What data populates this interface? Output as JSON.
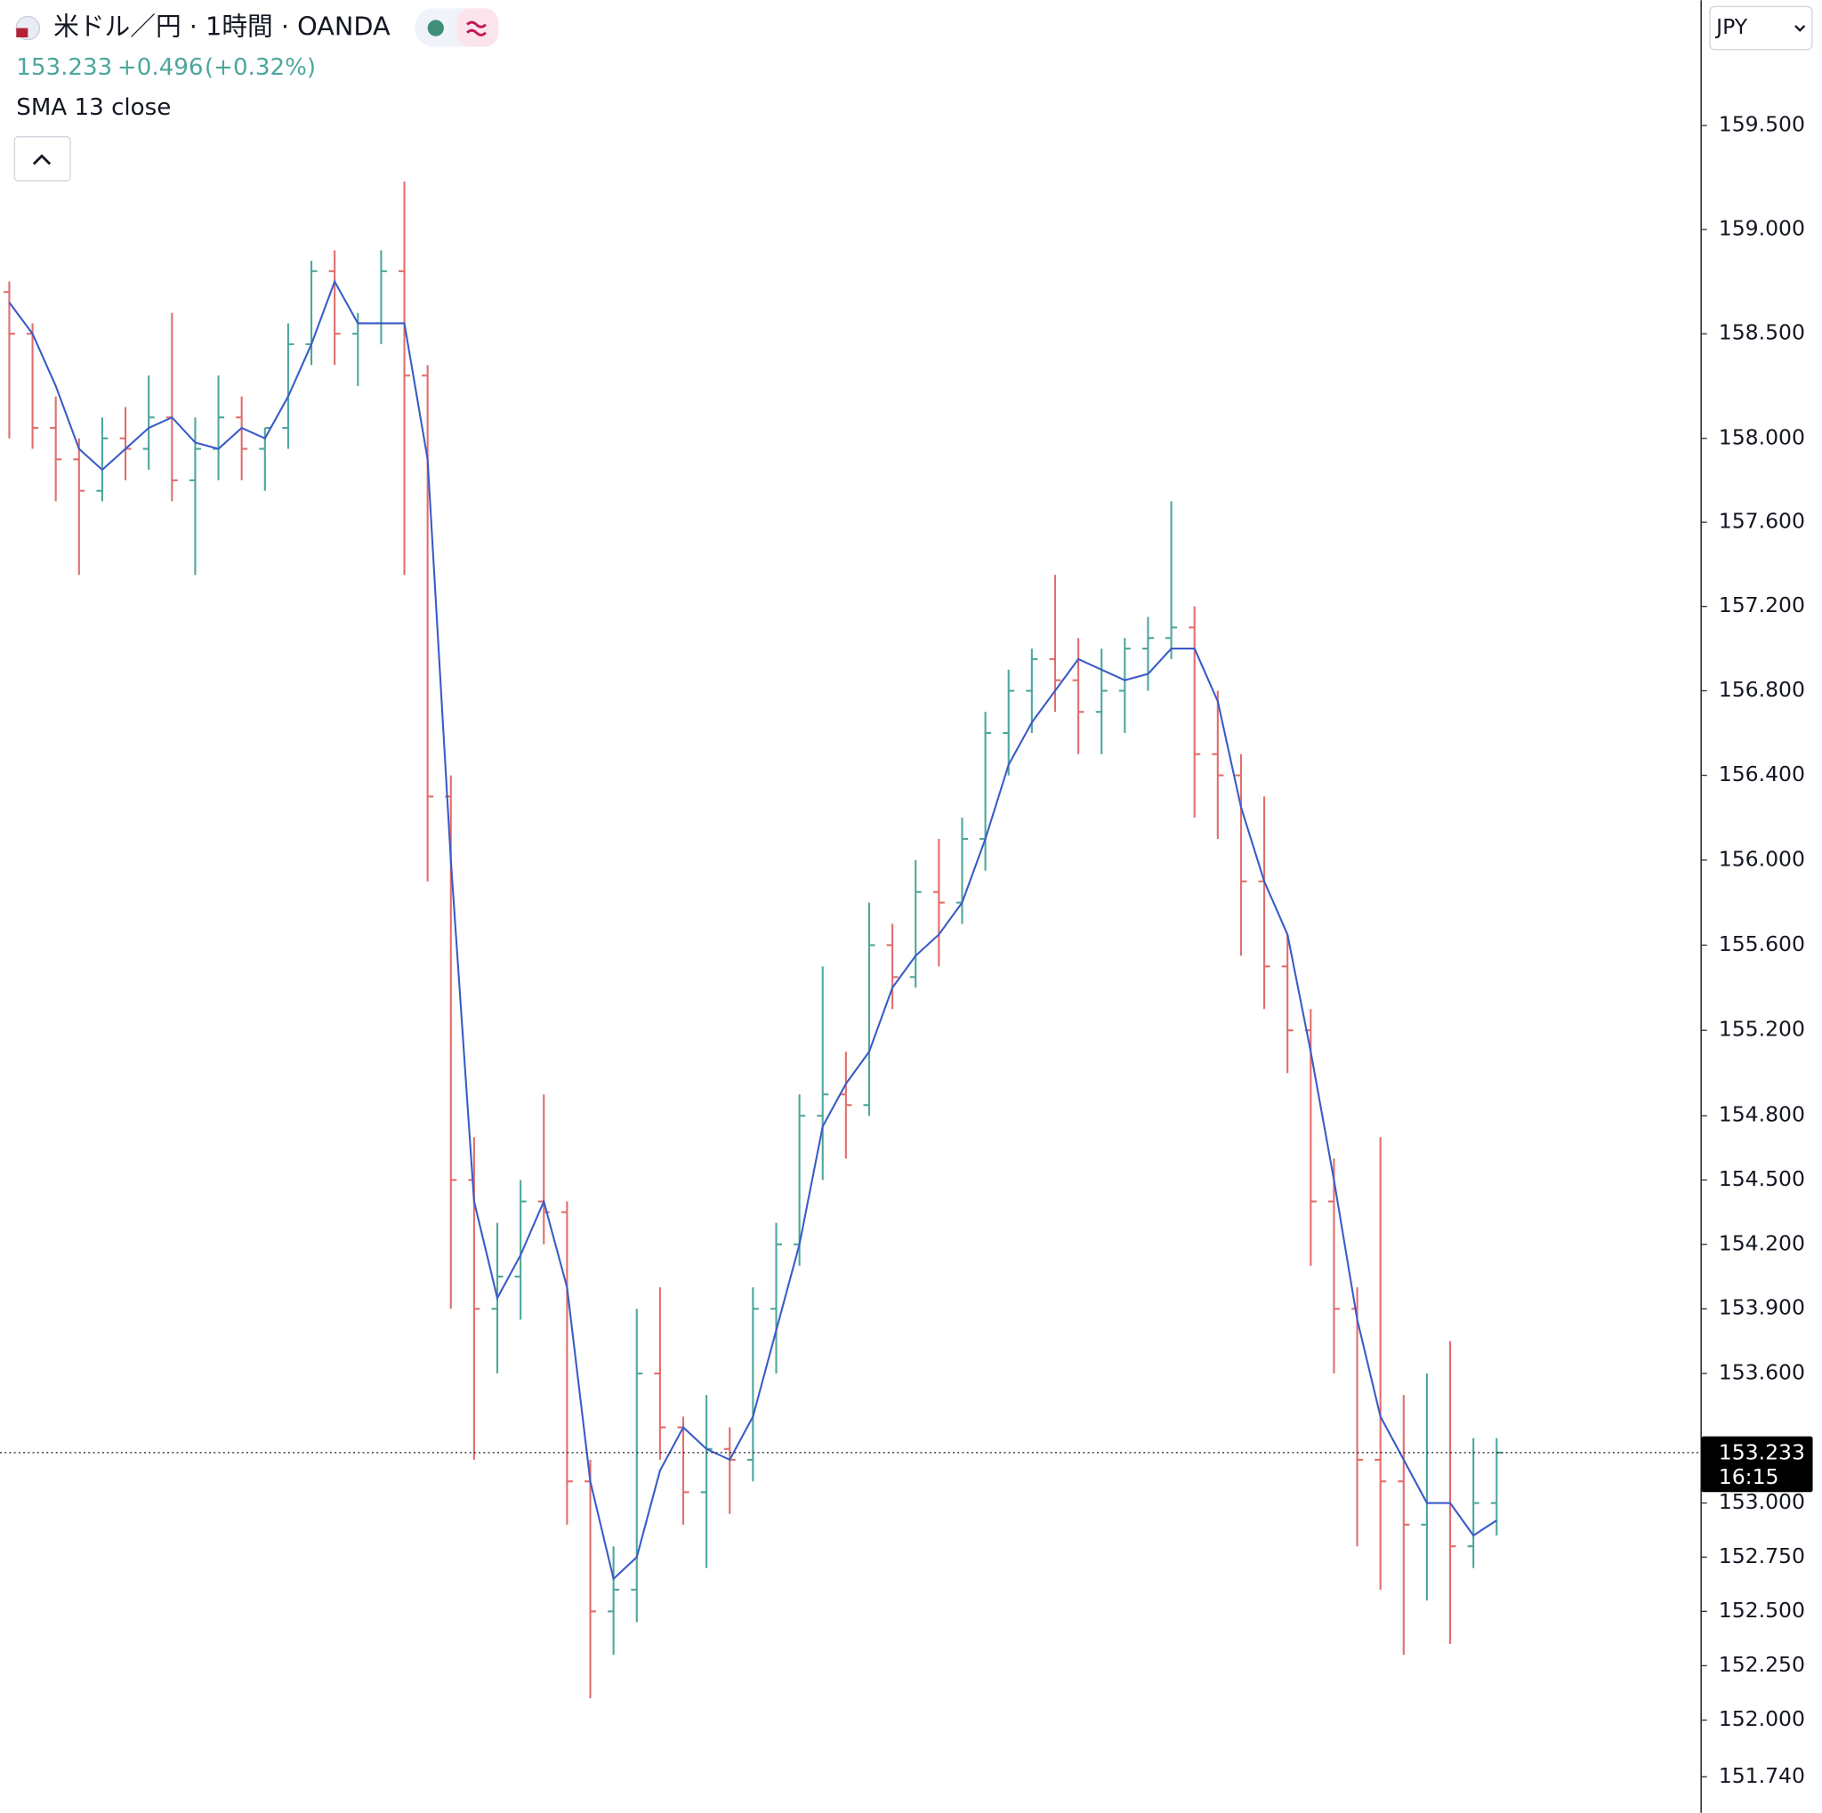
{
  "chart_data": {
    "type": "ohlc",
    "title": "米ドル／円 · 1時間 · OANDA",
    "last": 153.233,
    "change": {
      "value": 0.496,
      "label": "+0.496"
    },
    "change_pct": {
      "value": 0.32,
      "label": "(+0.32%)"
    },
    "time_label": "16:15",
    "currency": "JPY",
    "log_scale": true,
    "up_color": "#4ca79b",
    "down_color": "#e26d6d",
    "open": [
      158.7,
      158.5,
      158.05,
      157.9,
      157.75,
      158.0,
      157.95,
      158.1,
      157.8,
      157.95,
      158.1,
      157.95,
      158.05,
      158.45,
      158.8,
      158.5,
      158.55,
      158.8,
      158.3,
      156.3,
      154.5,
      153.9,
      154.05,
      154.4,
      154.35,
      153.1,
      152.5,
      152.6,
      153.6,
      153.35,
      153.05,
      153.25,
      153.2,
      153.9,
      154.2,
      154.8,
      154.9,
      154.85,
      155.6,
      155.45,
      155.85,
      155.8,
      156.1,
      156.6,
      156.8,
      156.95,
      156.85,
      156.7,
      156.8,
      157.0,
      157.05,
      157.1,
      156.5,
      156.4,
      155.9,
      155.5,
      155.2,
      154.4,
      153.9,
      153.2,
      153.1,
      152.9,
      153.0,
      152.8,
      153.0
    ],
    "high": [
      158.75,
      158.55,
      158.2,
      158.0,
      158.1,
      158.15,
      158.3,
      158.6,
      158.1,
      158.3,
      158.2,
      158.05,
      158.55,
      158.85,
      158.9,
      158.6,
      158.9,
      159.23,
      158.35,
      156.4,
      154.7,
      154.3,
      154.5,
      154.9,
      154.4,
      153.2,
      152.8,
      153.9,
      154.0,
      153.4,
      153.5,
      153.35,
      154.0,
      154.3,
      154.9,
      155.5,
      155.1,
      155.8,
      155.7,
      156.0,
      156.1,
      156.2,
      156.7,
      156.9,
      157.0,
      157.35,
      157.05,
      157.0,
      157.05,
      157.15,
      157.7,
      157.2,
      156.8,
      156.5,
      156.3,
      155.65,
      155.3,
      154.6,
      154.0,
      154.7,
      153.5,
      153.6,
      153.75,
      153.3,
      153.3
    ],
    "low": [
      158.0,
      157.95,
      157.7,
      157.35,
      157.7,
      157.8,
      157.85,
      157.7,
      157.35,
      157.8,
      157.8,
      157.75,
      157.95,
      158.35,
      158.35,
      158.25,
      158.45,
      157.35,
      155.9,
      153.9,
      153.2,
      153.6,
      153.85,
      154.2,
      152.9,
      152.1,
      152.3,
      152.45,
      153.2,
      152.9,
      152.7,
      152.95,
      153.1,
      153.6,
      154.1,
      154.5,
      154.6,
      154.8,
      155.3,
      155.4,
      155.5,
      155.7,
      155.95,
      156.4,
      156.6,
      156.7,
      156.5,
      156.5,
      156.6,
      156.8,
      156.95,
      156.2,
      156.1,
      155.55,
      155.3,
      155.0,
      154.1,
      153.6,
      152.8,
      152.6,
      152.3,
      152.55,
      152.35,
      152.7,
      152.85
    ],
    "close": [
      158.5,
      158.05,
      157.9,
      157.75,
      158.0,
      157.95,
      158.1,
      157.8,
      157.95,
      158.1,
      157.95,
      158.05,
      158.45,
      158.8,
      158.5,
      158.55,
      158.8,
      158.3,
      156.3,
      154.5,
      153.9,
      154.05,
      154.4,
      154.35,
      153.1,
      152.5,
      152.6,
      153.6,
      153.35,
      153.05,
      153.25,
      153.2,
      153.9,
      154.2,
      154.8,
      154.9,
      154.85,
      155.6,
      155.45,
      155.85,
      155.8,
      156.1,
      156.6,
      156.8,
      156.95,
      156.85,
      156.7,
      156.8,
      157.0,
      157.05,
      157.1,
      156.5,
      156.4,
      155.9,
      155.5,
      155.2,
      154.4,
      153.9,
      153.2,
      153.1,
      152.9,
      153.0,
      152.8,
      153.0,
      153.233
    ],
    "sma": {
      "name": "SMA 13 close",
      "color": "#3a5bc7",
      "values": [
        158.65,
        158.5,
        158.25,
        157.95,
        157.85,
        157.95,
        158.05,
        158.1,
        157.98,
        157.95,
        158.05,
        158.0,
        158.2,
        158.45,
        158.75,
        158.55,
        158.55,
        158.55,
        157.9,
        156.0,
        154.4,
        153.95,
        154.15,
        154.4,
        154.0,
        153.1,
        152.65,
        152.75,
        153.15,
        153.35,
        153.25,
        153.2,
        153.4,
        153.8,
        154.2,
        154.75,
        154.95,
        155.1,
        155.4,
        155.55,
        155.65,
        155.8,
        156.1,
        156.45,
        156.65,
        156.8,
        156.95,
        156.9,
        156.85,
        156.88,
        157.0,
        157.0,
        156.75,
        156.25,
        155.9,
        155.65,
        155.1,
        154.5,
        153.85,
        153.4,
        153.2,
        153.0,
        153.0,
        152.85,
        152.92
      ]
    },
    "ylim": [
      151.575,
      160.105
    ],
    "yticks": [
      {
        "value": 159.5,
        "label": "159.500"
      },
      {
        "value": 159.0,
        "label": "159.000"
      },
      {
        "value": 158.5,
        "label": "158.500"
      },
      {
        "value": 158.0,
        "label": "158.000"
      },
      {
        "value": 157.6,
        "label": "157.600"
      },
      {
        "value": 157.2,
        "label": "157.200"
      },
      {
        "value": 156.8,
        "label": "156.800"
      },
      {
        "value": 156.4,
        "label": "156.400"
      },
      {
        "value": 156.0,
        "label": "156.000"
      },
      {
        "value": 155.6,
        "label": "155.600"
      },
      {
        "value": 155.2,
        "label": "155.200"
      },
      {
        "value": 154.8,
        "label": "154.800"
      },
      {
        "value": 154.5,
        "label": "154.500"
      },
      {
        "value": 154.2,
        "label": "154.200"
      },
      {
        "value": 153.9,
        "label": "153.900"
      },
      {
        "value": 153.6,
        "label": "153.600"
      },
      {
        "value": 153.0,
        "label": "153.000"
      },
      {
        "value": 152.75,
        "label": "152.750"
      },
      {
        "value": 152.5,
        "label": "152.500"
      },
      {
        "value": 152.25,
        "label": "152.250"
      },
      {
        "value": 152.0,
        "label": "152.000"
      },
      {
        "value": 151.74,
        "label": "151.740"
      }
    ]
  }
}
